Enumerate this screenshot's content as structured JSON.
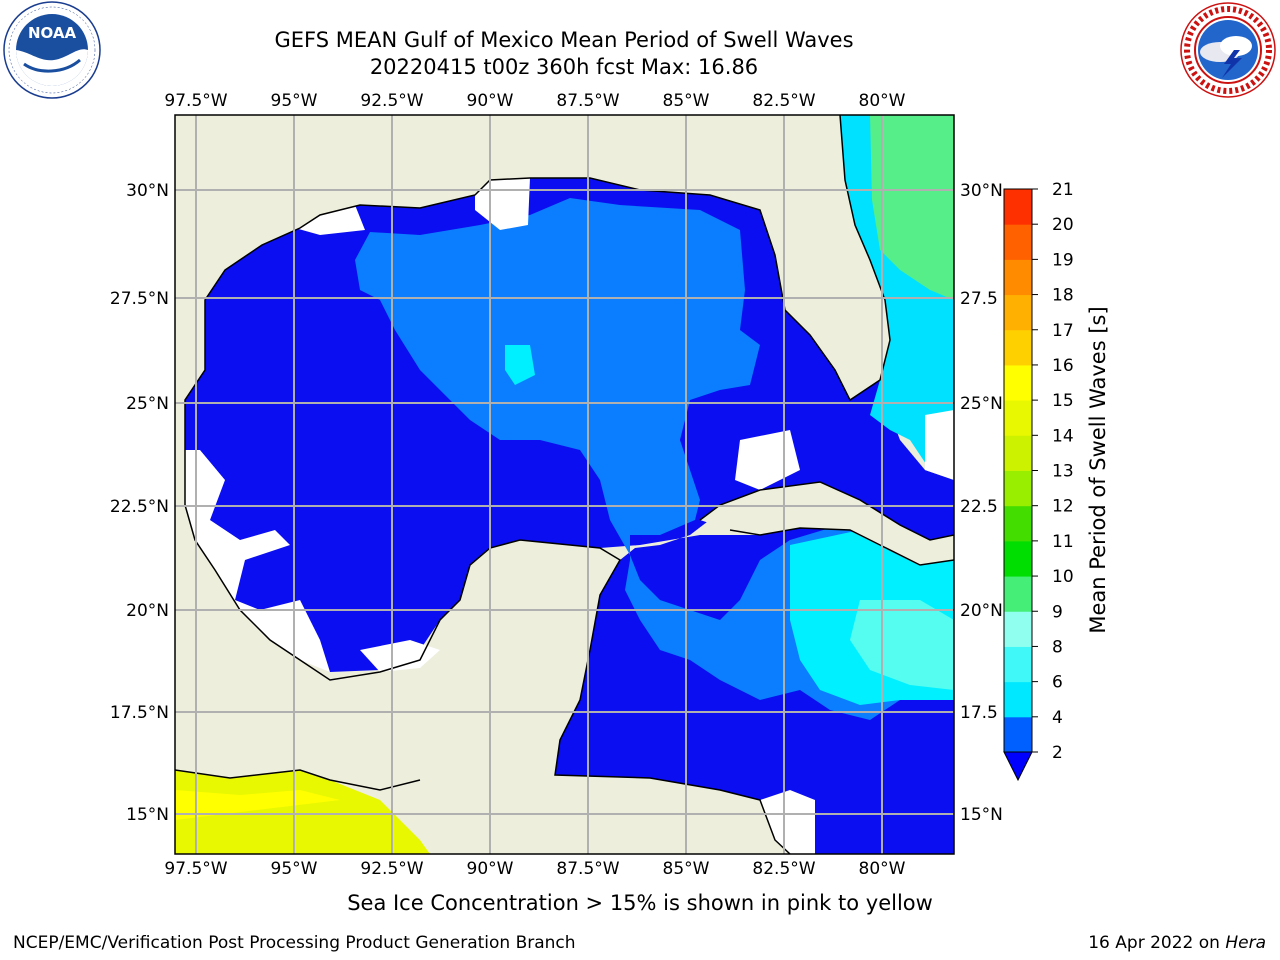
{
  "title": {
    "line1": "GEFS MEAN Gulf of Mexico Mean Period of Swell Waves",
    "line2": "20220415 t00z 360h fcst   Max: 16.86"
  },
  "logos": {
    "left": {
      "icon": "noaa-logo-icon",
      "text": "NOAA",
      "ring_text": "NATIONAL OCEANIC AND ATMOSPHERIC ADMINISTRATION · U.S. DEPARTMENT OF COMMERCE"
    },
    "right": {
      "icon": "nws-logo-icon",
      "ring_text": "NATIONAL WEATHER SERVICE"
    }
  },
  "map": {
    "lon_labels": [
      "97.5°W",
      "95°W",
      "92.5°W",
      "90°W",
      "87.5°W",
      "85°W",
      "82.5°W",
      "80°W"
    ],
    "lat_labels_left": [
      "30°N",
      "27.5°N",
      "25°N",
      "22.5°N",
      "20°N",
      "17.5°N",
      "15°N"
    ],
    "lat_labels_right": [
      "30°N",
      "27.5",
      "25°N",
      "22.5",
      "20°N",
      "17.5",
      "15°N"
    ],
    "colors": {
      "land": "#eeeedd",
      "gridline": "#b0b0b0",
      "coast": "#000000",
      "no_data": "#ffffff"
    }
  },
  "colorbar": {
    "label": "Mean Period of Swell Waves [s]",
    "ticks": [
      "2",
      "4",
      "6",
      "8",
      "9",
      "10",
      "11",
      "12",
      "13",
      "14",
      "15",
      "16",
      "17",
      "18",
      "19",
      "20",
      "21"
    ],
    "colors": [
      "#0060ff",
      "#00e8ff",
      "#40f8f8",
      "#90fff0",
      "#44ee77",
      "#00dd00",
      "#44dd00",
      "#99ee00",
      "#ccf200",
      "#e8f800",
      "#ffff00",
      "#ffd000",
      "#ffb000",
      "#ff8c00",
      "#ff6000",
      "#ff3000",
      "#ff0000"
    ],
    "extend_color": "#0000ff"
  },
  "footer": {
    "note": "Sea Ice Concentration > 15% is shown in pink to yellow",
    "credit": "NCEP/EMC/Verification Post Processing Product Generation Branch",
    "date": "16 Apr 2022 on",
    "machine": "Hera"
  }
}
